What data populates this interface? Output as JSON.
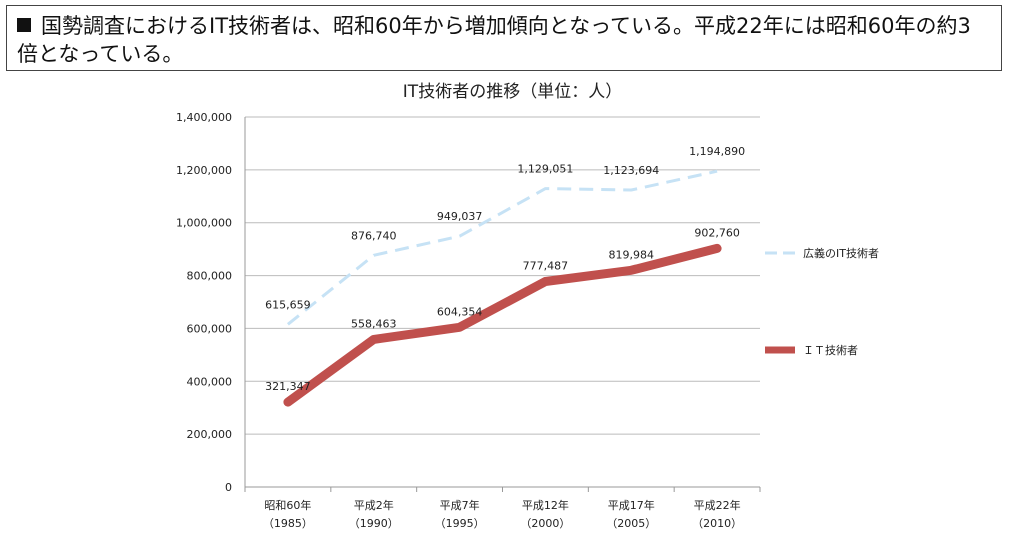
{
  "headline": "国勢調査におけるIT技術者は、昭和60年から増加傾向となっている。平成22年には昭和60年の約3倍となっている。",
  "chart_data": {
    "type": "line",
    "title": "IT技術者の推移（単位：人）",
    "categories": [
      {
        "label": "昭和60年",
        "year": "（1985）"
      },
      {
        "label": "平成2年",
        "year": "（1990）"
      },
      {
        "label": "平成7年",
        "year": "（1995）"
      },
      {
        "label": "平成12年",
        "year": "（2000）"
      },
      {
        "label": "平成17年",
        "year": "（2005）"
      },
      {
        "label": "平成22年",
        "year": "（2010）"
      }
    ],
    "ylim": [
      0,
      1400000
    ],
    "yticks": [
      0,
      200000,
      400000,
      600000,
      800000,
      1000000,
      1200000,
      1400000
    ],
    "grid": true,
    "legend_position": "right",
    "series": [
      {
        "name": "広義のIT技術者",
        "style": "dashed",
        "color": "#c6e2f5",
        "values": [
          615659,
          876740,
          949037,
          1129051,
          1123694,
          1194890
        ]
      },
      {
        "name": "ＩＴ技術者",
        "style": "solid",
        "color": "#c0504d",
        "values": [
          321347,
          558463,
          604354,
          777487,
          819984,
          902760
        ]
      }
    ]
  }
}
